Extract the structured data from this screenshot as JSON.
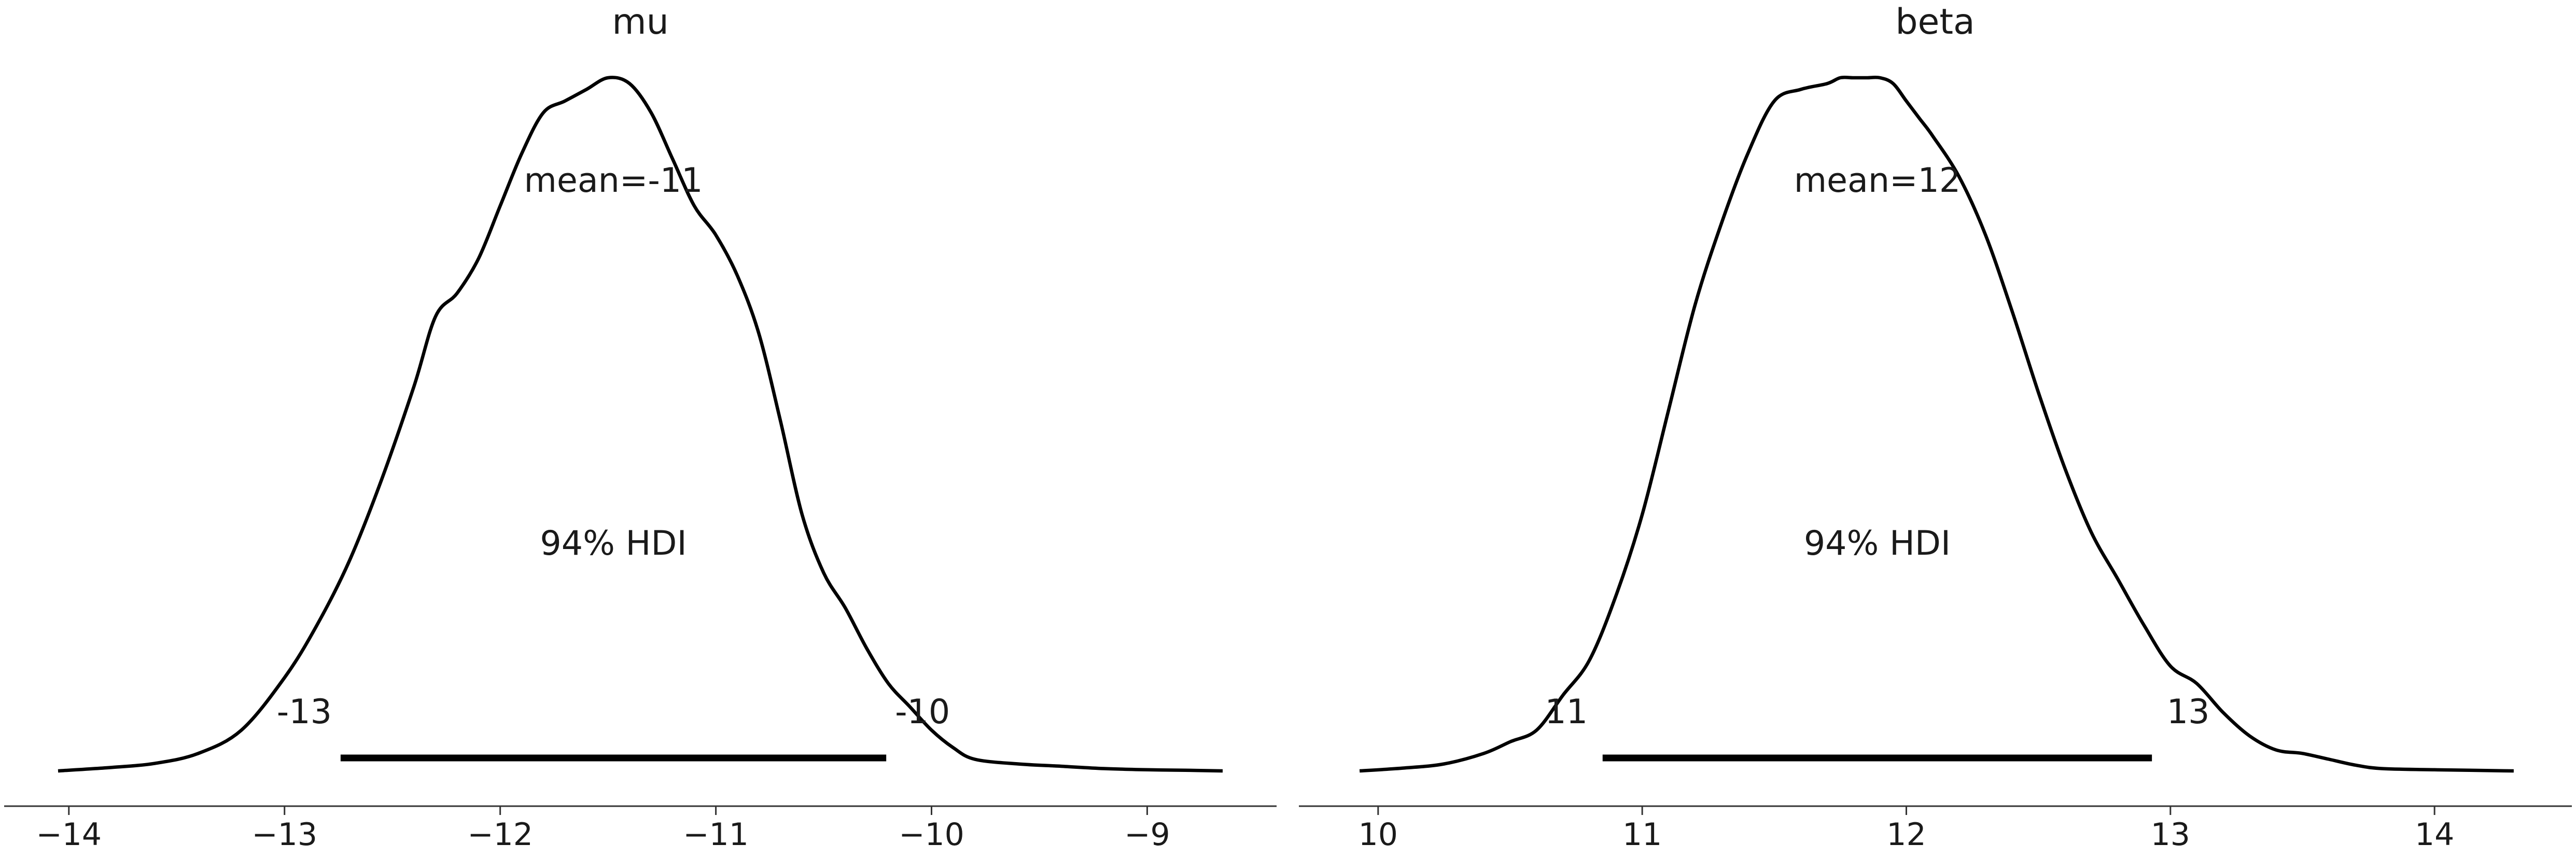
{
  "chart_data": [
    {
      "type": "area",
      "title": "mu",
      "xlabel": "",
      "ylabel": "",
      "xlim": [
        -14.3,
        -8.4
      ],
      "xticks": [
        -14,
        -13,
        -12,
        -11,
        -10,
        -9
      ],
      "xtick_labels": [
        "−14",
        "−13",
        "−12",
        "−11",
        "−10",
        "−9"
      ],
      "mean_label": "mean=-11",
      "hdi_label": "94% HDI",
      "hdi_low_label": "-13",
      "hdi_high_label": "-10",
      "hdi": [
        -12.74,
        -10.21
      ],
      "kde": {
        "x": [
          -14.05,
          -13.8,
          -13.6,
          -13.4,
          -13.2,
          -13.0,
          -12.85,
          -12.7,
          -12.55,
          -12.4,
          -12.3,
          -12.2,
          -12.1,
          -12.0,
          -11.9,
          -11.8,
          -11.7,
          -11.6,
          -11.5,
          -11.4,
          -11.3,
          -11.2,
          -11.1,
          -11.0,
          -10.9,
          -10.8,
          -10.7,
          -10.6,
          -10.5,
          -10.4,
          -10.3,
          -10.2,
          -10.1,
          -10.0,
          -9.9,
          -9.8,
          -9.6,
          -9.4,
          -9.2,
          -9.0,
          -8.8,
          -8.65
        ],
        "y": [
          0.0,
          0.006,
          0.013,
          0.03,
          0.07,
          0.16,
          0.25,
          0.36,
          0.5,
          0.66,
          0.78,
          0.82,
          0.88,
          0.97,
          1.06,
          1.13,
          1.15,
          1.17,
          1.19,
          1.18,
          1.13,
          1.05,
          0.97,
          0.92,
          0.85,
          0.75,
          0.6,
          0.44,
          0.34,
          0.28,
          0.21,
          0.15,
          0.11,
          0.07,
          0.04,
          0.02,
          0.012,
          0.008,
          0.004,
          0.002,
          0.001,
          0.0
        ]
      }
    },
    {
      "type": "area",
      "title": "beta",
      "xlabel": "",
      "ylabel": "",
      "xlim": [
        9.7,
        14.52
      ],
      "xticks": [
        10,
        11,
        12,
        13,
        14
      ],
      "xtick_labels": [
        "10",
        "11",
        "12",
        "13",
        "14"
      ],
      "mean_label": "mean=12",
      "hdi_label": "94% HDI",
      "hdi_low_label": "11",
      "hdi_high_label": "13",
      "hdi": [
        10.85,
        12.93
      ],
      "kde": {
        "x": [
          9.93,
          10.1,
          10.25,
          10.4,
          10.5,
          10.6,
          10.7,
          10.8,
          10.9,
          11.0,
          11.1,
          11.2,
          11.3,
          11.4,
          11.5,
          11.6,
          11.7,
          11.75,
          11.8,
          11.85,
          11.9,
          11.95,
          12.0,
          12.05,
          12.1,
          12.2,
          12.3,
          12.4,
          12.5,
          12.6,
          12.7,
          12.8,
          12.9,
          13.0,
          13.1,
          13.2,
          13.3,
          13.4,
          13.5,
          13.6,
          13.7,
          13.8,
          14.0,
          14.3
        ],
        "y": [
          0.0,
          0.005,
          0.012,
          0.03,
          0.05,
          0.07,
          0.13,
          0.19,
          0.3,
          0.44,
          0.62,
          0.8,
          0.94,
          1.06,
          1.15,
          1.17,
          1.18,
          1.19,
          1.19,
          1.19,
          1.19,
          1.18,
          1.15,
          1.12,
          1.09,
          1.02,
          0.92,
          0.79,
          0.65,
          0.52,
          0.41,
          0.33,
          0.25,
          0.18,
          0.15,
          0.1,
          0.06,
          0.036,
          0.03,
          0.02,
          0.01,
          0.004,
          0.002,
          0.0
        ]
      }
    }
  ]
}
